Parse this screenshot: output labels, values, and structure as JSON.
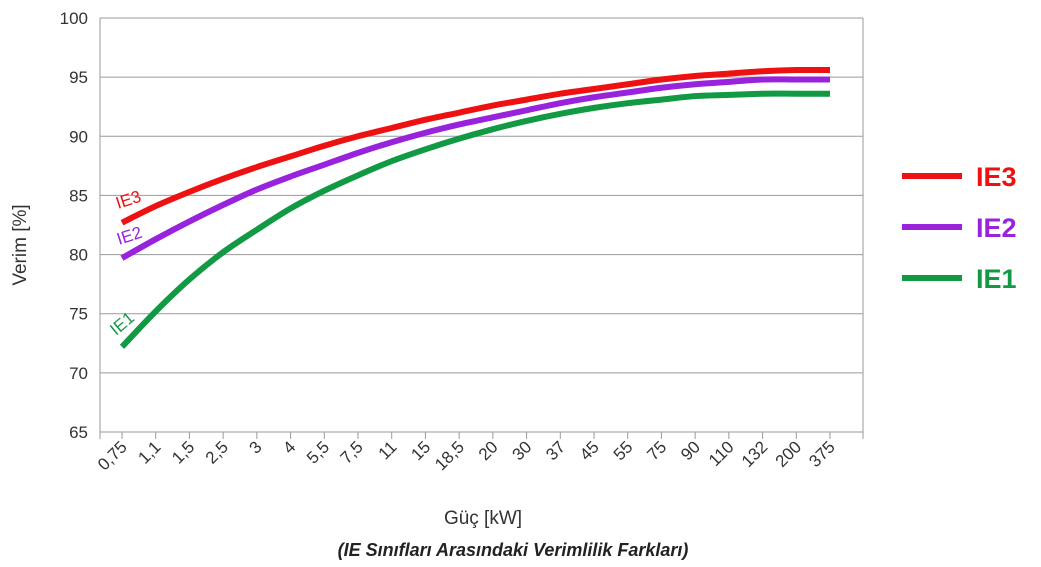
{
  "chart_data": {
    "type": "line",
    "xlabel": "Güç [kW]",
    "ylabel": "Verim [%]",
    "caption": "(IE Sınıfları Arasındaki Verimlilik Farkları)",
    "ylim": [
      65,
      100
    ],
    "yticks": [
      "65",
      "70",
      "75",
      "80",
      "85",
      "90",
      "95",
      "100"
    ],
    "categories": [
      "0,75",
      "1,1",
      "1,5",
      "2,5",
      "3",
      "4",
      "5,5",
      "7,5",
      "11",
      "15",
      "18,5",
      "20",
      "30",
      "37",
      "45",
      "55",
      "75",
      "90",
      "110",
      "132",
      "200",
      "375"
    ],
    "grid": true,
    "legend_position": "right",
    "series": [
      {
        "name": "IE3",
        "color": "#ee1111",
        "values": [
          82.7,
          84.1,
          85.3,
          86.4,
          87.4,
          88.3,
          89.2,
          90.0,
          90.7,
          91.4,
          92.0,
          92.6,
          93.1,
          93.6,
          94.0,
          94.4,
          94.8,
          95.1,
          95.3,
          95.5,
          95.6,
          95.6
        ]
      },
      {
        "name": "IE2",
        "color": "#9922dd",
        "values": [
          79.7,
          81.3,
          82.8,
          84.2,
          85.5,
          86.6,
          87.6,
          88.6,
          89.5,
          90.3,
          91.0,
          91.6,
          92.2,
          92.8,
          93.3,
          93.7,
          94.1,
          94.4,
          94.6,
          94.8,
          94.8,
          94.8
        ]
      },
      {
        "name": "IE1",
        "color": "#119944",
        "values": [
          72.2,
          75.2,
          77.9,
          80.2,
          82.1,
          83.9,
          85.4,
          86.7,
          87.9,
          88.9,
          89.8,
          90.6,
          91.3,
          91.9,
          92.4,
          92.8,
          93.1,
          93.4,
          93.5,
          93.6,
          93.6,
          93.6
        ]
      }
    ],
    "curve_labels": [
      "IE3",
      "IE2",
      "IE1"
    ],
    "legend": [
      "IE3",
      "IE2",
      "IE1"
    ]
  }
}
